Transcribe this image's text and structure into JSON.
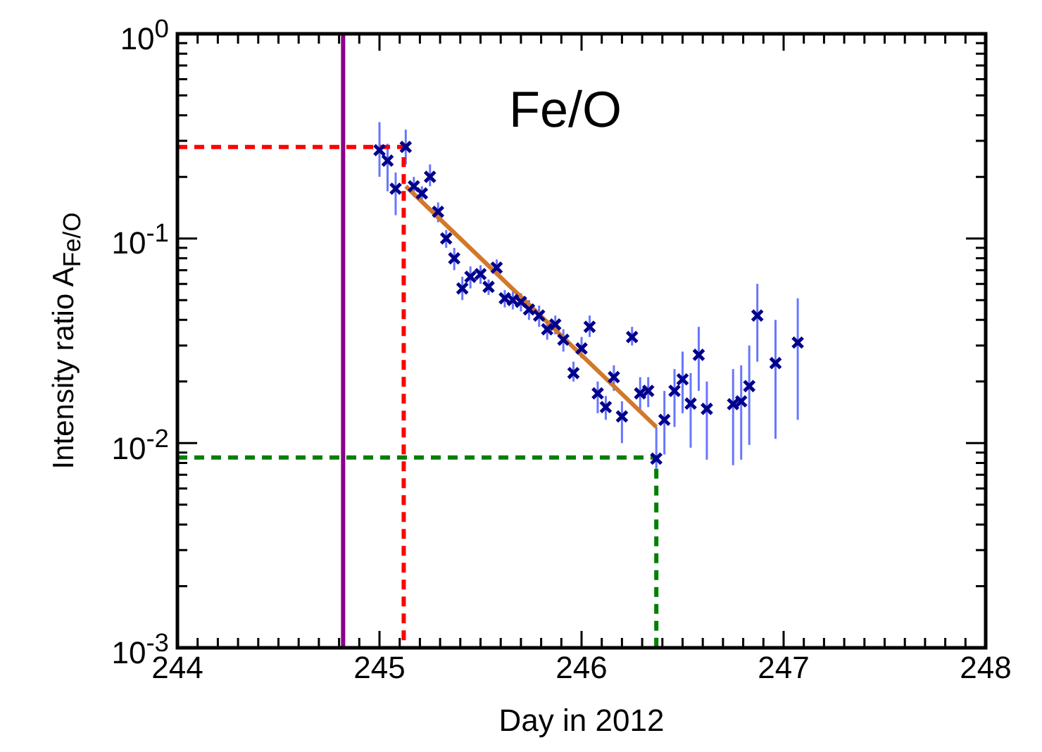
{
  "chart_data": {
    "type": "scatter",
    "xlabel": "Day in 2012",
    "ylabel": "Intensity ratio A$_{Fe/O}$",
    "annotations": [
      "Fe/O"
    ],
    "xlim": [
      244,
      248
    ],
    "xticks": [
      244,
      245,
      246,
      247,
      248
    ],
    "ylim": [
      0.001,
      1
    ],
    "yticks": [
      {
        "value": 0.001,
        "label": "10$^{-3}$"
      },
      {
        "value": 0.01,
        "label": "10$^{-2}$"
      },
      {
        "value": 0.1,
        "label": "10$^{-1}$"
      },
      {
        "value": 1,
        "label": "10$^{0}$"
      }
    ],
    "log": "y",
    "grid": false,
    "ref_lines": [
      {
        "axis": "x",
        "value": 244.82,
        "color": "#8b008b"
      }
    ],
    "series": [
      {
        "color": "#00008b",
        "marker": "cross",
        "x": [
          245.0,
          245.04,
          245.08,
          245.13,
          245.17,
          245.21,
          245.25,
          245.29,
          245.33,
          245.37,
          245.41,
          245.45,
          245.5,
          245.54,
          245.58,
          245.62,
          245.66,
          245.7,
          245.74,
          245.79,
          245.83,
          245.87,
          245.91,
          245.96,
          246.0,
          246.04,
          246.08,
          246.12,
          246.16,
          246.2,
          246.25,
          246.29,
          246.33,
          246.37,
          246.41,
          246.46,
          246.5,
          246.54,
          246.58,
          246.62,
          246.75,
          246.79,
          246.83,
          246.87,
          246.96,
          247.07
        ],
        "values": [
          0.27,
          0.24,
          0.175,
          0.28,
          0.18,
          0.166,
          0.2,
          0.135,
          0.1,
          0.08,
          0.057,
          0.065,
          0.067,
          0.058,
          0.072,
          0.051,
          0.05,
          0.049,
          0.045,
          0.042,
          0.036,
          0.038,
          0.032,
          0.022,
          0.029,
          0.037,
          0.0175,
          0.015,
          0.021,
          0.0135,
          0.033,
          0.0175,
          0.018,
          0.0084,
          0.013,
          0.018,
          0.0205,
          0.0156,
          0.027,
          0.0147,
          0.0155,
          0.016,
          0.019,
          0.042,
          0.0246,
          0.031
        ],
        "errors": [
          [
            0.2,
            0.37
          ],
          [
            0.17,
            0.29
          ],
          [
            0.13,
            0.21
          ],
          [
            0.23,
            0.34
          ],
          [
            0.16,
            0.2
          ],
          [
            0.15,
            0.18
          ],
          [
            0.18,
            0.23
          ],
          [
            0.12,
            0.15
          ],
          [
            0.09,
            0.11
          ],
          [
            0.07,
            0.09
          ],
          [
            0.05,
            0.065
          ],
          [
            0.057,
            0.073
          ],
          [
            0.06,
            0.074
          ],
          [
            0.053,
            0.063
          ],
          [
            0.066,
            0.079
          ],
          [
            0.046,
            0.056
          ],
          [
            0.045,
            0.055
          ],
          [
            0.044,
            0.054
          ],
          [
            0.04,
            0.05
          ],
          [
            0.037,
            0.047
          ],
          [
            0.032,
            0.04
          ],
          [
            0.034,
            0.042
          ],
          [
            0.028,
            0.036
          ],
          [
            0.02,
            0.025
          ],
          [
            0.026,
            0.033
          ],
          [
            0.033,
            0.042
          ],
          [
            0.014,
            0.02
          ],
          [
            0.013,
            0.017
          ],
          [
            0.018,
            0.024
          ],
          [
            0.01,
            0.016
          ],
          [
            0.03,
            0.037
          ],
          [
            0.014,
            0.021
          ],
          [
            0.015,
            0.021
          ],
          [
            0.0075,
            0.012
          ],
          [
            0.0088,
            0.018
          ],
          [
            0.012,
            0.023
          ],
          [
            0.014,
            0.028
          ],
          [
            0.0095,
            0.022
          ],
          [
            0.018,
            0.037
          ],
          [
            0.0083,
            0.02
          ],
          [
            0.0078,
            0.023
          ],
          [
            0.0083,
            0.024
          ],
          [
            0.0098,
            0.03
          ],
          [
            0.025,
            0.06
          ],
          [
            0.0105,
            0.04
          ],
          [
            0.013,
            0.051
          ]
        ]
      },
      {
        "type": "line",
        "color": "#d2782a",
        "line_style": "solid",
        "x": [
          245.13,
          246.37
        ],
        "values": [
          0.18,
          0.012
        ]
      },
      {
        "type": "line",
        "color": "#ff0000",
        "line_style": "dashed",
        "x": [
          244,
          245.12,
          245.12
        ],
        "values": [
          0.28,
          0.28,
          0.001
        ]
      },
      {
        "type": "line",
        "color": "#008000",
        "line_style": "dashed",
        "x": [
          244,
          246.37,
          246.37
        ],
        "values": [
          0.0085,
          0.0085,
          0.001
        ]
      }
    ]
  }
}
